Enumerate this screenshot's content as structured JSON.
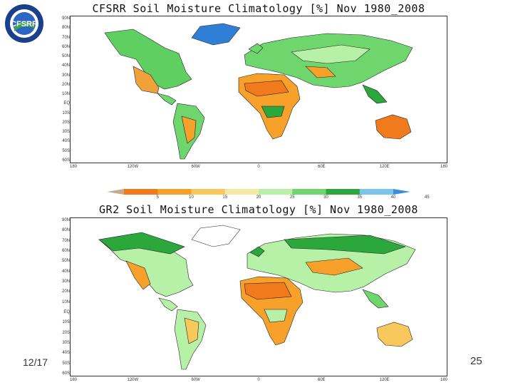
{
  "logo": {
    "text": "CFSRR",
    "ring_text": "NOAA Climate Forecast System Reanalysis and Reforecast"
  },
  "maps": [
    {
      "title": "CFSRR Soil Moisture Climatology [%] Nov 1980_2008"
    },
    {
      "title": "GR2 Soil Moisture Climatology [%] Nov 1980_2008"
    }
  ],
  "top_lat_labels": [
    "90N",
    "80N",
    "70N",
    "60N",
    "50N",
    "40N",
    "30N",
    "20N",
    "10N",
    "EQ",
    "10S",
    "20S",
    "30S",
    "40S",
    "50S",
    "60S"
  ],
  "bottom_lat_labels": [
    "90N",
    "80N",
    "70N",
    "60N",
    "50N",
    "40N",
    "30N",
    "20N",
    "10N",
    "EQ",
    "10S",
    "20S",
    "30S",
    "40S",
    "50S",
    "60S"
  ],
  "top_lon_labels": [
    "180",
    "120W",
    "60W",
    "0",
    "60E",
    "120E",
    "180"
  ],
  "bottom_lon_labels": [
    "180",
    "120W",
    "60W",
    "0",
    "60E",
    "120E",
    "180"
  ],
  "colorbar": {
    "labels": [
      "5",
      "10",
      "15",
      "20",
      "25",
      "30",
      "35",
      "40",
      "45"
    ],
    "colors": [
      "#c9a98f",
      "#f07a1c",
      "#f7a12a",
      "#f9c85d",
      "#f4e9a2",
      "#b7f0a7",
      "#6fd66d",
      "#2ba73b",
      "#7bc4ea",
      "#3b8ed9"
    ]
  },
  "footer": {
    "date": "12/17",
    "page": "25"
  }
}
